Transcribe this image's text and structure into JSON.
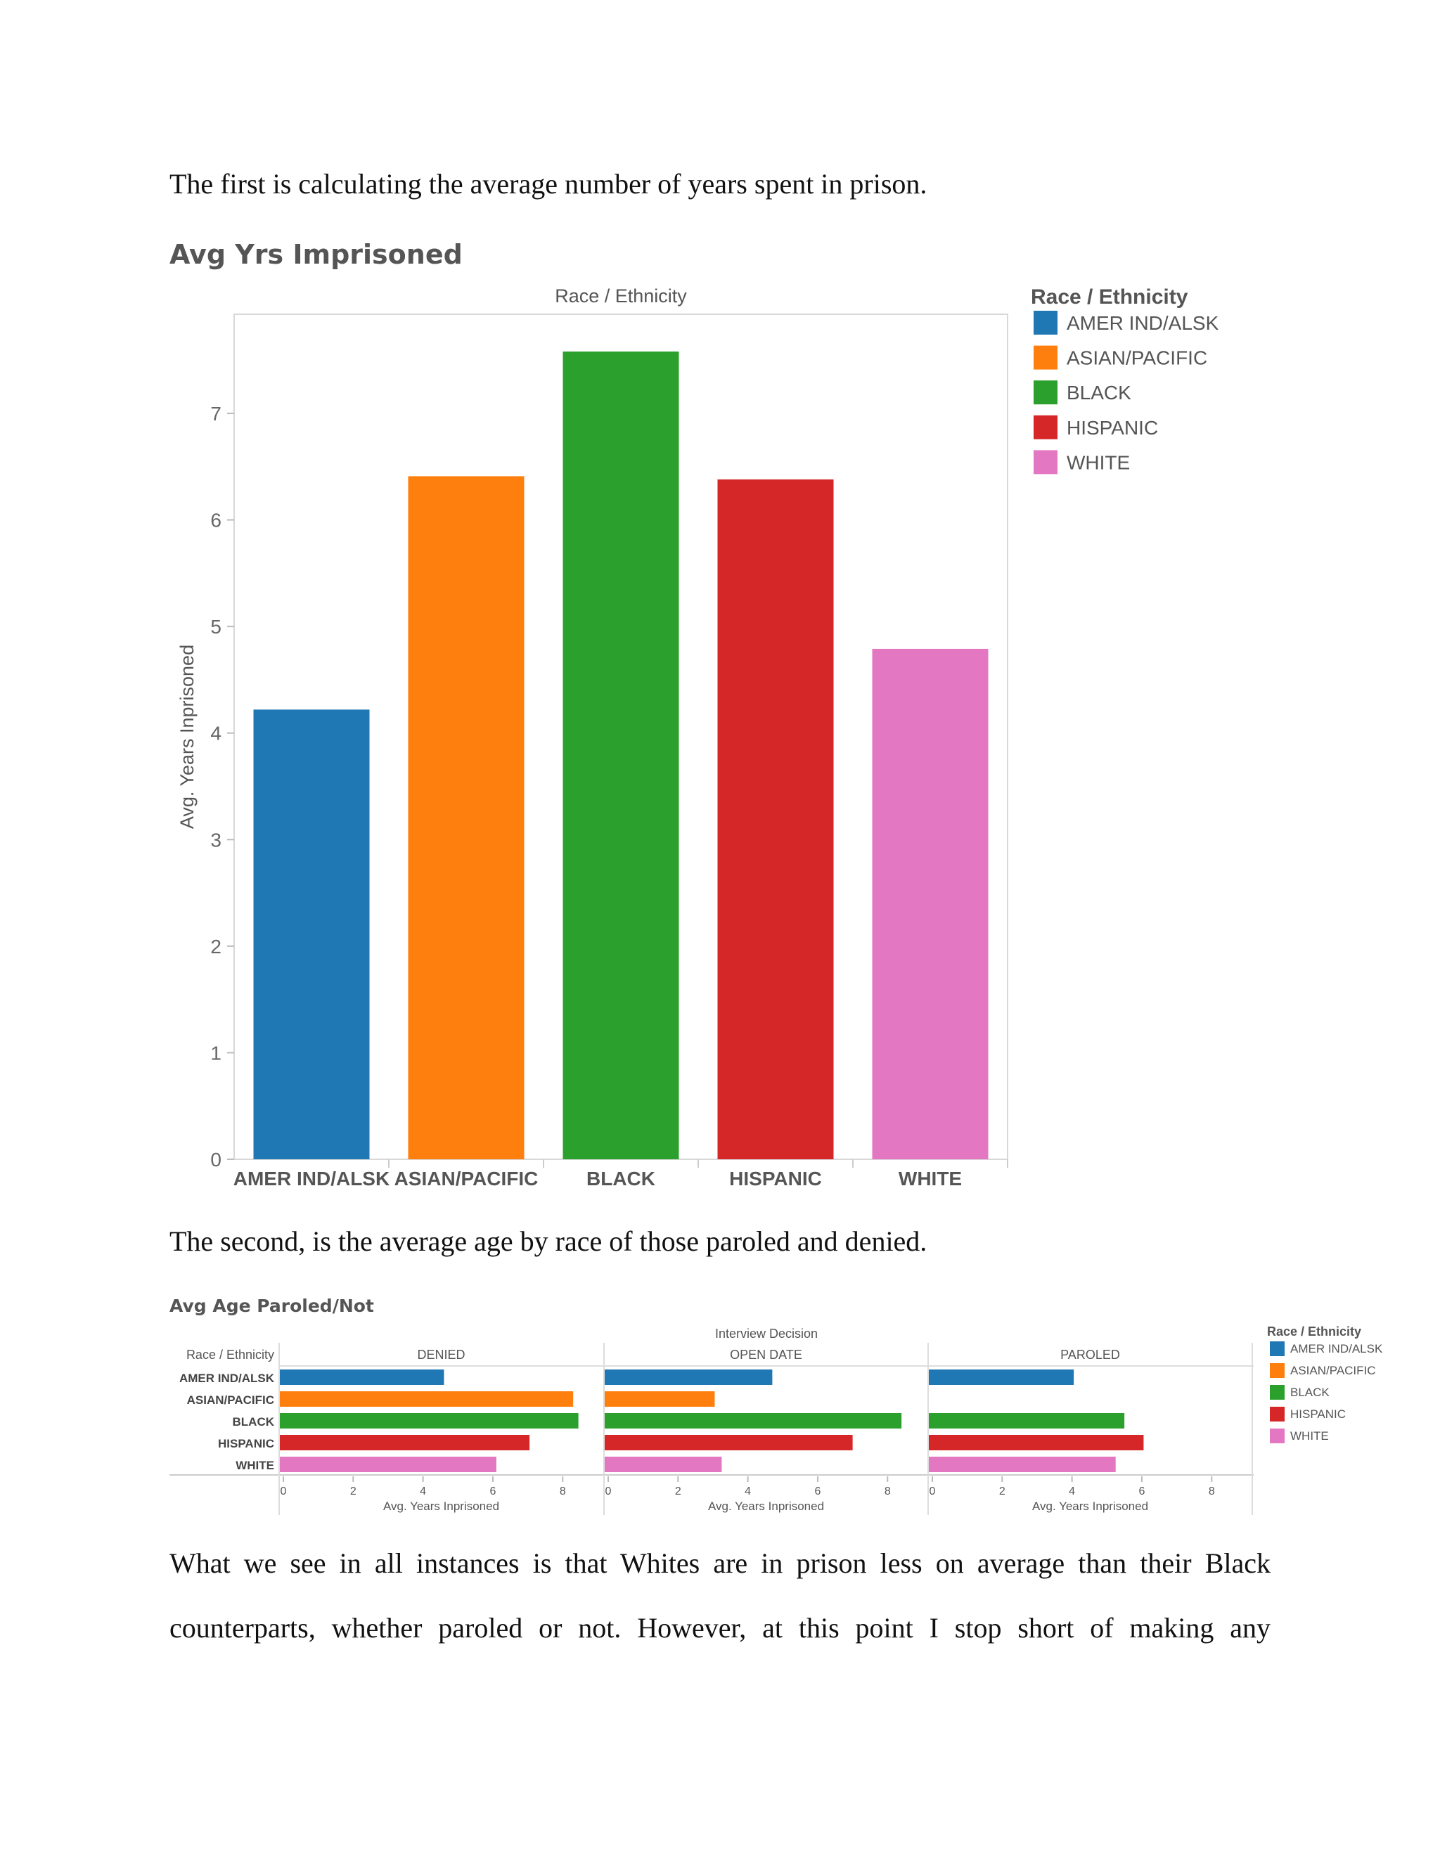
{
  "document": {
    "para1": "The first is calculating the average number of years spent in prison.",
    "para2": "The second, is the average age by race of those paroled and denied.",
    "para3_line1": "What we see in all instances is that Whites are in prison less on average than their Black",
    "para3_line2": "counterparts, whether paroled or not. However, at this point I stop short of making any"
  },
  "chart1": {
    "heading": "Avg Yrs Imprisoned",
    "column_header": "Race / Ethnicity",
    "legend_title": "Race / Ethnicity"
  },
  "chart2": {
    "heading": "Avg Age Paroled/Not",
    "top_header": "Interview Decision",
    "row_header": "Race / Ethnicity",
    "legend_title": "Race / Ethnicity"
  },
  "chart_data": [
    {
      "type": "bar",
      "title": "Avg Yrs Imprisoned",
      "xlabel": "Race / Ethnicity",
      "ylabel": "Avg. Years Inprisoned",
      "categories": [
        "AMER IND/ALSK",
        "ASIAN/PACIFIC",
        "BLACK",
        "HISPANIC",
        "WHITE"
      ],
      "values": [
        4.22,
        6.41,
        7.58,
        6.38,
        4.79
      ],
      "colors": [
        "#1f77b4",
        "#ff7f0e",
        "#2ca02c",
        "#d62728",
        "#e377c2"
      ],
      "ylim": [
        0,
        7.93
      ],
      "yticks": [
        0,
        1,
        2,
        3,
        4,
        5,
        6,
        7
      ],
      "grid": false,
      "legend": "right"
    },
    {
      "type": "bar",
      "orientation": "horizontal",
      "title": "Avg Age Paroled/Not",
      "facet_label": "Interview Decision",
      "row_label": "Race / Ethnicity",
      "xlabel": "Avg. Years Inprisoned",
      "categories": [
        "AMER IND/ALSK",
        "ASIAN/PACIFIC",
        "BLACK",
        "HISPANIC",
        "WHITE"
      ],
      "colors": [
        "#1f77b4",
        "#ff7f0e",
        "#2ca02c",
        "#d62728",
        "#e377c2"
      ],
      "xlim": [
        0,
        8.8
      ],
      "xticks": [
        0,
        2,
        4,
        6,
        8
      ],
      "legend": "right",
      "series": [
        {
          "name": "DENIED",
          "values": [
            4.6,
            8.3,
            8.45,
            7.05,
            6.1
          ]
        },
        {
          "name": "OPEN DATE",
          "values": [
            4.7,
            3.05,
            8.4,
            7.0,
            3.25
          ]
        },
        {
          "name": "PAROLED",
          "values": [
            4.05,
            null,
            5.5,
            6.05,
            5.25
          ]
        }
      ]
    }
  ]
}
